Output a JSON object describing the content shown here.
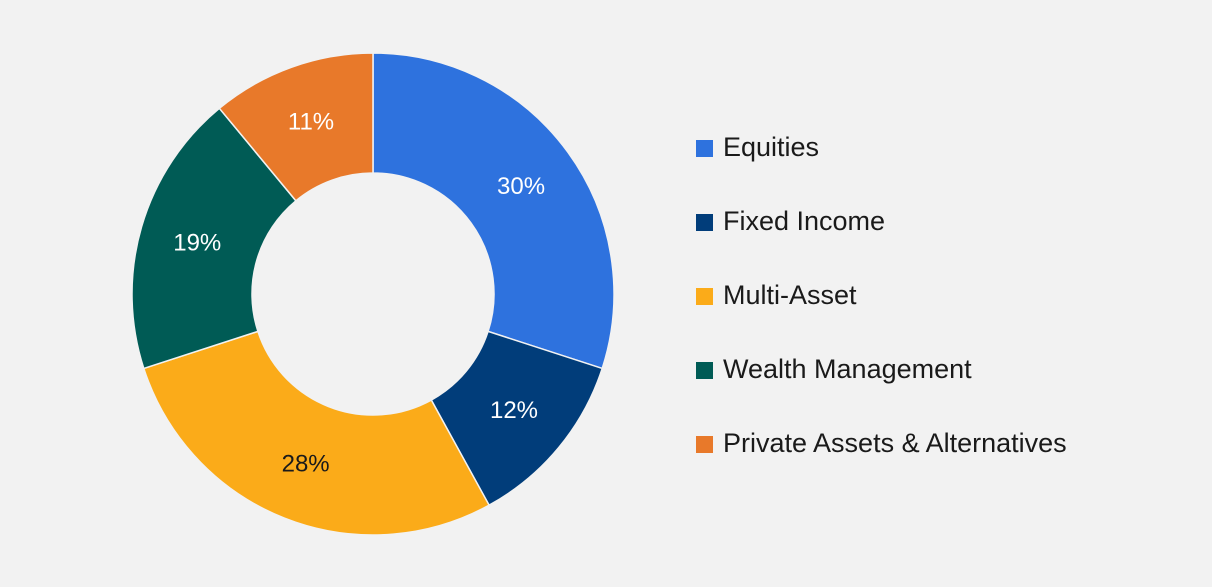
{
  "chart_data": {
    "type": "pie",
    "variant": "donut",
    "title": "",
    "categories": [
      "Equities",
      "Fixed Income",
      "Multi-Asset",
      "Wealth Management",
      "Private Assets & Alternatives"
    ],
    "values": [
      30,
      12,
      28,
      19,
      11
    ],
    "value_labels": [
      "30%",
      "12%",
      "28%",
      "19%",
      "11%"
    ],
    "colors": [
      "#2e72de",
      "#013d7a",
      "#fbab19",
      "#005b55",
      "#e8792a"
    ],
    "label_colors": [
      "#ffffff",
      "#ffffff",
      "#1a1a1a",
      "#ffffff",
      "#ffffff"
    ],
    "legend_position": "right",
    "legend": [
      {
        "label": "Equities",
        "color": "#2e72de"
      },
      {
        "label": "Fixed Income",
        "color": "#013d7a"
      },
      {
        "label": "Multi-Asset",
        "color": "#fbab19"
      },
      {
        "label": "Wealth Management",
        "color": "#005b55"
      },
      {
        "label": "Private Assets & Alternatives",
        "color": "#e8792a"
      }
    ]
  }
}
